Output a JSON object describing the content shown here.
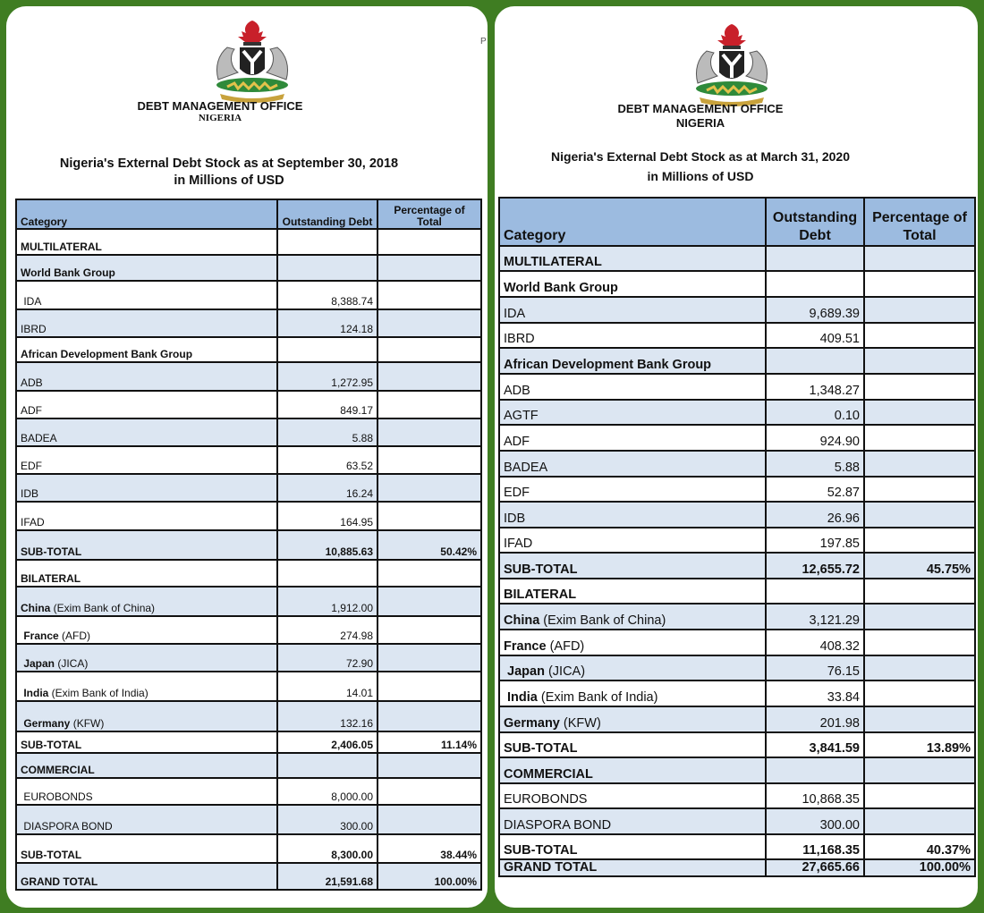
{
  "left": {
    "org_line1": "DEBT MANAGEMENT OFFICE",
    "org_line2": "NIGERIA",
    "title_line1": "Nigeria's External Debt Stock as at September 30, 2018",
    "title_line2": "in Millions of USD",
    "stray_text": "P",
    "headers": {
      "category": "Category",
      "outstanding": "Outstanding Debt",
      "percentage": "Percentage of Total"
    },
    "rows": [
      {
        "label": "MULTILATERAL",
        "bold": "",
        "rest": "",
        "value": "",
        "pct": ""
      },
      {
        "label": "World Bank Group",
        "bold": "",
        "rest": "",
        "value": "",
        "pct": ""
      },
      {
        "label": " IDA",
        "bold": "",
        "rest": "",
        "value": "8,388.74",
        "pct": ""
      },
      {
        "label": "IBRD",
        "bold": "",
        "rest": "",
        "value": "124.18",
        "pct": ""
      },
      {
        "label": "African Development Bank Group",
        "bold": "",
        "rest": "",
        "value": "",
        "pct": ""
      },
      {
        "label": "ADB",
        "bold": "",
        "rest": "",
        "value": "1,272.95",
        "pct": ""
      },
      {
        "label": "ADF",
        "bold": "",
        "rest": "",
        "value": "849.17",
        "pct": ""
      },
      {
        "label": "BADEA",
        "bold": "",
        "rest": "",
        "value": "5.88",
        "pct": ""
      },
      {
        "label": "EDF",
        "bold": "",
        "rest": "",
        "value": "63.52",
        "pct": ""
      },
      {
        "label": "IDB",
        "bold": "",
        "rest": "",
        "value": "16.24",
        "pct": ""
      },
      {
        "label": "IFAD",
        "bold": "",
        "rest": "",
        "value": "164.95",
        "pct": ""
      },
      {
        "label": "SUB-TOTAL",
        "bold": "",
        "rest": "",
        "value": "10,885.63",
        "pct": "50.42%"
      },
      {
        "label": "BILATERAL",
        "bold": "",
        "rest": "",
        "value": "",
        "pct": ""
      },
      {
        "label": "",
        "bold": "China",
        "rest": " (Exim Bank of China)",
        "value": "1,912.00",
        "pct": ""
      },
      {
        "label": "",
        "bold": " France",
        "rest": " (AFD)",
        "value": "274.98",
        "pct": ""
      },
      {
        "label": "",
        "bold": " Japan",
        "rest": " (JICA)",
        "value": "72.90",
        "pct": ""
      },
      {
        "label": "",
        "bold": " India",
        "rest": " (Exim Bank of India)",
        "value": "14.01",
        "pct": ""
      },
      {
        "label": "",
        "bold": " Germany",
        "rest": " (KFW)",
        "value": "132.16",
        "pct": ""
      },
      {
        "label": "SUB-TOTAL",
        "bold": "",
        "rest": "",
        "value": "2,406.05",
        "pct": "11.14%"
      },
      {
        "label": "COMMERCIAL",
        "bold": "",
        "rest": "",
        "value": "",
        "pct": ""
      },
      {
        "label": " EUROBONDS",
        "bold": "",
        "rest": "",
        "value": "8,000.00",
        "pct": ""
      },
      {
        "label": " DIASPORA BOND",
        "bold": "",
        "rest": "",
        "value": "300.00",
        "pct": ""
      },
      {
        "label": "SUB-TOTAL",
        "bold": "",
        "rest": "",
        "value": "8,300.00",
        "pct": "38.44%"
      },
      {
        "label": "GRAND TOTAL",
        "bold": "",
        "rest": "",
        "value": "21,591.68",
        "pct": "100.00%"
      }
    ]
  },
  "right": {
    "org_line1": "DEBT MANAGEMENT OFFICE",
    "org_line2": "NIGERIA",
    "title_line1": "Nigeria's External Debt Stock as at March 31, 2020",
    "title_line2": "in Millions of USD",
    "headers": {
      "category": "Category",
      "outstanding": "Outstanding Debt",
      "percentage": "Percentage of Total"
    },
    "rows": [
      {
        "label": "MULTILATERAL",
        "bold": "",
        "rest": "",
        "value": "",
        "pct": ""
      },
      {
        "label": "World Bank Group",
        "bold": "",
        "rest": "",
        "value": "",
        "pct": ""
      },
      {
        "label": "IDA",
        "bold": "",
        "rest": "",
        "value": "9,689.39",
        "pct": ""
      },
      {
        "label": "IBRD",
        "bold": "",
        "rest": "",
        "value": "409.51",
        "pct": ""
      },
      {
        "label": "African Development Bank Group",
        "bold": "",
        "rest": "",
        "value": "",
        "pct": ""
      },
      {
        "label": "ADB",
        "bold": "",
        "rest": "",
        "value": "1,348.27",
        "pct": ""
      },
      {
        "label": "AGTF",
        "bold": "",
        "rest": "",
        "value": "0.10",
        "pct": ""
      },
      {
        "label": "ADF",
        "bold": "",
        "rest": "",
        "value": "924.90",
        "pct": ""
      },
      {
        "label": "BADEA",
        "bold": "",
        "rest": "",
        "value": "5.88",
        "pct": ""
      },
      {
        "label": "EDF",
        "bold": "",
        "rest": "",
        "value": "52.87",
        "pct": ""
      },
      {
        "label": "IDB",
        "bold": "",
        "rest": "",
        "value": "26.96",
        "pct": ""
      },
      {
        "label": "IFAD",
        "bold": "",
        "rest": "",
        "value": "197.85",
        "pct": ""
      },
      {
        "label": "SUB-TOTAL",
        "bold": "",
        "rest": "",
        "value": "12,655.72",
        "pct": "45.75%"
      },
      {
        "label": "BILATERAL",
        "bold": "",
        "rest": "",
        "value": "",
        "pct": ""
      },
      {
        "label": "",
        "bold": "China",
        "rest": " (Exim Bank of China)",
        "value": "3,121.29",
        "pct": ""
      },
      {
        "label": "",
        "bold": "France",
        "rest": " (AFD)",
        "value": "408.32",
        "pct": ""
      },
      {
        "label": "",
        "bold": " Japan",
        "rest": " (JICA)",
        "value": "76.15",
        "pct": ""
      },
      {
        "label": "",
        "bold": " India",
        "rest": " (Exim Bank of India)",
        "value": "33.84",
        "pct": ""
      },
      {
        "label": "",
        "bold": "Germany",
        "rest": " (KFW)",
        "value": "201.98",
        "pct": ""
      },
      {
        "label": "SUB-TOTAL",
        "bold": "",
        "rest": "",
        "value": "3,841.59",
        "pct": "13.89%"
      },
      {
        "label": "COMMERCIAL",
        "bold": "",
        "rest": "",
        "value": "",
        "pct": ""
      },
      {
        "label": "EUROBONDS",
        "bold": "",
        "rest": "",
        "value": "10,868.35",
        "pct": ""
      },
      {
        "label": "DIASPORA BOND",
        "bold": "",
        "rest": "",
        "value": "300.00",
        "pct": ""
      },
      {
        "label": "SUB-TOTAL",
        "bold": "",
        "rest": "",
        "value": "11,168.35",
        "pct": "40.37%"
      },
      {
        "label": "GRAND TOTAL",
        "bold": "",
        "rest": "",
        "value": "27,665.66",
        "pct": "100.00%"
      }
    ]
  },
  "colors": {
    "background": "#3f7d22",
    "header_fill": "#9cbbe0",
    "row_shade": "#dce6f2",
    "crest_green": "#2f8a3a",
    "crest_red": "#c8202a"
  },
  "icons": {
    "crest": "nigeria-coat-of-arms-icon"
  }
}
